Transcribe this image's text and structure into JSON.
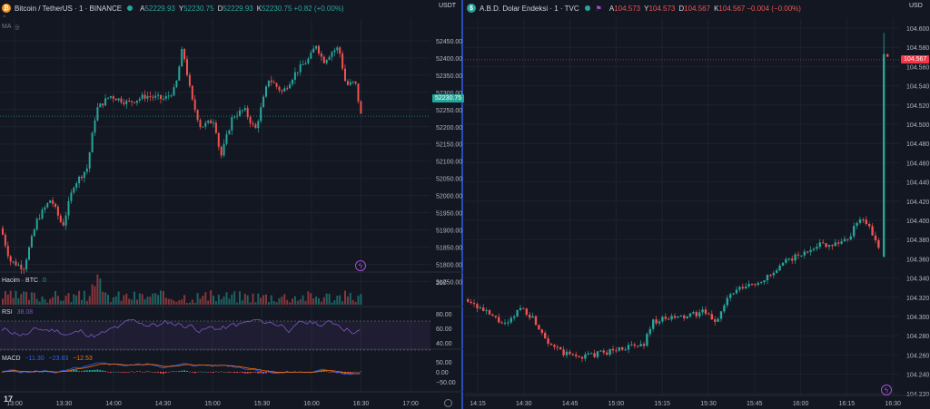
{
  "left": {
    "symbol": "Bitcoin / TetherUS · 1 · BINANCE",
    "icon_glyph": "₿",
    "icon_color": "#f7931a",
    "ohlc": {
      "o_label": "A",
      "o": "52229.93",
      "h_label": "Y",
      "h": "52230.75",
      "l_label": "D",
      "l": "52229.93",
      "c_label": "K",
      "c": "52230.75",
      "change": "+0.82 (+0.00%)"
    },
    "currency": "USDT",
    "small_label": "MA",
    "last_price": "52230.75",
    "price_ticks": [
      "52450.00",
      "52400.00",
      "52350.00",
      "52300.00",
      "52250.00",
      "52200.00",
      "52150.00",
      "52100.00",
      "52050.00",
      "52000.00",
      "51950.00",
      "51900.00",
      "51850.00",
      "51800.00",
      "51750.00"
    ],
    "volume_label": "Hacim · BTC",
    "volume_value": "0",
    "volume_tick": "200",
    "rsi_label": "RSI",
    "rsi_value": "38.08",
    "rsi_ticks": [
      "80.00",
      "60.00",
      "40.00"
    ],
    "macd_label": "MACD",
    "macd_v1": "−11.30",
    "macd_v2": "−23.83",
    "macd_v3": "−12.53",
    "macd_ticks": [
      "50.00",
      "0.00",
      "−50.00"
    ],
    "time_ticks": [
      "13:00",
      "13:30",
      "14:00",
      "14:30",
      "15:00",
      "15:30",
      "16:00",
      "16:30",
      "17:00"
    ],
    "logo": "17",
    "colors": {
      "up": "#26a69a",
      "down": "#ef5350",
      "rsi": "#7e57c2",
      "macd": "#2962ff",
      "signal": "#ff6d00",
      "price_tag": "#26a69a"
    }
  },
  "right": {
    "symbol": "A.B.D. Dolar Endeksi · 1 · TVC",
    "icon_glyph": "$",
    "icon_color": "#26a69a",
    "ohlc": {
      "o_label": "A",
      "o": "104.573",
      "h_label": "Y",
      "h": "104.573",
      "l_label": "D",
      "l": "104.567",
      "c_label": "K",
      "c": "104.567",
      "change": "−0.004 (−0.00%)"
    },
    "currency": "USD",
    "last_price": "104.567",
    "price_ticks": [
      "104.600",
      "104.580",
      "104.560",
      "104.540",
      "104.520",
      "104.500",
      "104.480",
      "104.460",
      "104.440",
      "104.420",
      "104.400",
      "104.380",
      "104.360",
      "104.340",
      "104.320",
      "104.300",
      "104.280",
      "104.260",
      "104.240",
      "104.220"
    ],
    "time_ticks": [
      "14:15",
      "14:30",
      "14:45",
      "15:00",
      "15:15",
      "15:30",
      "15:45",
      "16:00",
      "16:15",
      "16:30"
    ],
    "colors": {
      "up": "#26a69a",
      "down": "#ef5350",
      "price_tag": "#f23645"
    }
  }
}
